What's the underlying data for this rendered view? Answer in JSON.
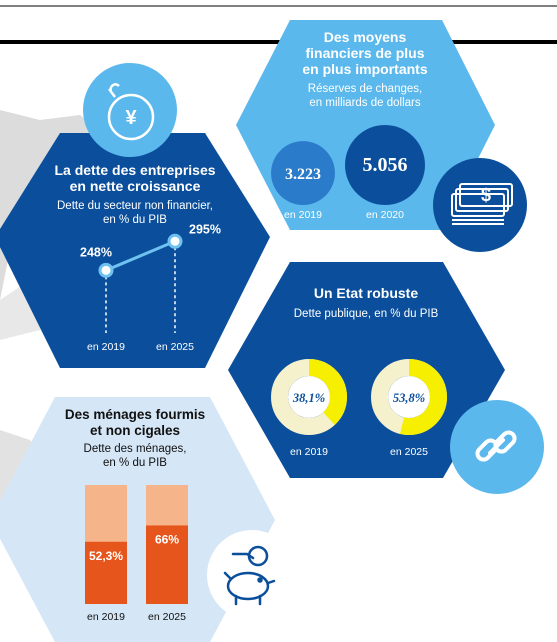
{
  "chart_data": [
    {
      "type": "bar",
      "title": "Des moyens financiers de plus en plus importants",
      "title_lines": [
        "Des moyens",
        "financiers de plus",
        "en plus importants"
      ],
      "subtitle_lines": [
        "Réserves de changes,",
        "en milliards de dollars"
      ],
      "categories": [
        "en 2019",
        "en 2020"
      ],
      "values": [
        3223,
        5056
      ],
      "value_labels": [
        "3.223",
        "5.056"
      ],
      "colors": [
        "#2a7bc9",
        "#0b4f9c"
      ],
      "icon": "money-stack-icon"
    },
    {
      "type": "line",
      "title": "La dette des entreprises en nette croissance",
      "title_lines": [
        "La dette des entreprises",
        "en nette croissance"
      ],
      "subtitle_lines": [
        "Dette du secteur non financier,",
        "en % du PIB"
      ],
      "categories": [
        "en 2019",
        "en 2025"
      ],
      "values": [
        248,
        295
      ],
      "value_labels": [
        "248%",
        "295%"
      ],
      "colors": [
        "#6fc1ef"
      ],
      "icon": "yuan-bomb-icon"
    },
    {
      "type": "pie",
      "title": "Un Etat robuste",
      "title_lines": [
        "Un Etat robuste"
      ],
      "subtitle_lines": [
        "Dette publique, en % du PIB"
      ],
      "categories": [
        "en 2019",
        "en 2025"
      ],
      "values": [
        38.1,
        53.8
      ],
      "value_labels": [
        "38,1%",
        "53,8%"
      ],
      "colors": [
        "#f6ef00",
        "#f5f1cc"
      ],
      "icon": "link-icon"
    },
    {
      "type": "bar",
      "title": "Des ménages fourmis et non cigales",
      "title_lines": [
        "Des ménages fourmis",
        "et non cigales"
      ],
      "subtitle_lines": [
        "Dette des ménages,",
        "en % du PIB"
      ],
      "categories": [
        "en 2019",
        "en 2025"
      ],
      "values": [
        52.3,
        66
      ],
      "value_labels": [
        "52,3%",
        "66%"
      ],
      "colors": [
        "#e6561c",
        "#f6b48a"
      ],
      "icon": "piggy-bank-icon"
    }
  ]
}
